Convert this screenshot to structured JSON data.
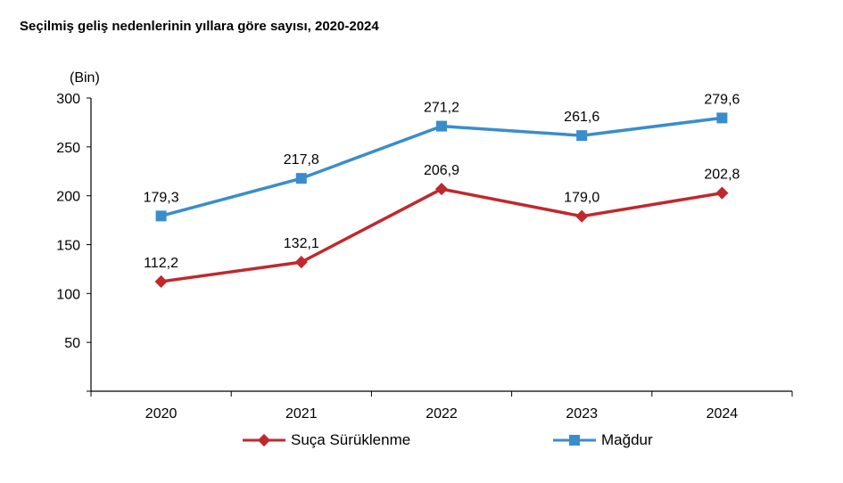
{
  "title": "Seçilmiş geliş nedenlerinin yıllara göre sayısı, 2020-2024",
  "chart_data": {
    "type": "line",
    "title": "Seçilmiş geliş nedenlerinin yıllara göre sayısı, 2020-2024",
    "y_unit_label": "(Bin)",
    "categories": [
      "2020",
      "2021",
      "2022",
      "2023",
      "2024"
    ],
    "y_ticks": [
      50,
      100,
      150,
      200,
      250,
      300
    ],
    "ylim": [
      0,
      300
    ],
    "grid": false,
    "legend_position": "bottom",
    "series": [
      {
        "name": "Suça Sürüklenme",
        "values": [
          112.2,
          132.1,
          206.9,
          179.0,
          202.8
        ],
        "labels": [
          "112,2",
          "132,1",
          "206,9",
          "179,0",
          "202,8"
        ],
        "color": "#C0282D",
        "marker": "diamond"
      },
      {
        "name": "Mağdur",
        "values": [
          179.3,
          217.8,
          271.2,
          261.6,
          279.6
        ],
        "labels": [
          "179,3",
          "217,8",
          "271,2",
          "261,6",
          "279,6"
        ],
        "color": "#3A8DCB",
        "marker": "square"
      }
    ]
  }
}
